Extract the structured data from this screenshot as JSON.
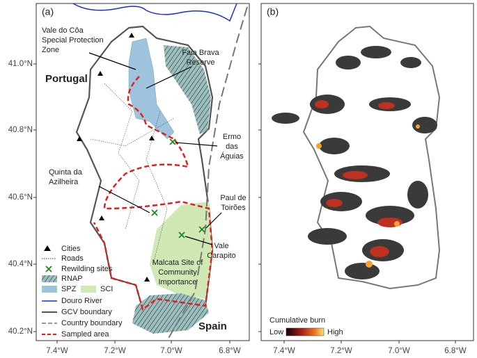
{
  "panels": [
    {
      "label": "(a)"
    },
    {
      "label": "(b)"
    }
  ],
  "y_axis_labels": [
    "41.0°N",
    "40.8°N",
    "40.6°N",
    "40.4°N",
    "40.2°N"
  ],
  "x_axis_labels": [
    "7.4°W",
    "7.2°W",
    "7.0°W",
    "6.8°W"
  ],
  "annotations": [
    {
      "lines": [
        "Vale do Côa",
        "Special Protection",
        "Zone"
      ]
    },
    {
      "lines": [
        "Faia Brava",
        "Reserve"
      ]
    },
    {
      "lines": [
        "Portugal"
      ]
    },
    {
      "lines": [
        "Ermo",
        "das",
        "Águias"
      ]
    },
    {
      "lines": [
        "Quinta da",
        "Azilheira"
      ]
    },
    {
      "lines": [
        "Paul de",
        "Toirões"
      ]
    },
    {
      "lines": [
        "Vale",
        "Carapito"
      ]
    },
    {
      "lines": [
        "Malcata Site of",
        "Community",
        "Importance"
      ]
    },
    {
      "lines": [
        "Spain"
      ]
    }
  ],
  "legend": [
    "Cities",
    "Roads",
    "Rewilding sites",
    "RNAP",
    "SPZ",
    "SCI",
    "Douro River",
    "GCV boundary",
    "Country boundary",
    "Sampled area"
  ],
  "burn_legend": {
    "title": "Cumulative burn",
    "low": "Low",
    "high": "High"
  }
}
